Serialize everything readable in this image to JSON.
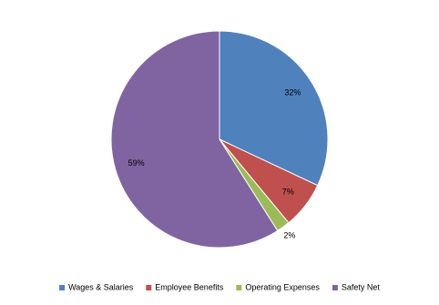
{
  "chart_data": {
    "type": "pie",
    "categories": [
      "Wages & Salaries",
      "Employee Benefits",
      "Operating Expenses",
      "Safety Net"
    ],
    "values": [
      32,
      7,
      2,
      59
    ],
    "value_labels": [
      "32%",
      "7%",
      "2%",
      "59%"
    ],
    "colors": [
      "#4f81bd",
      "#c0504d",
      "#9bbb59",
      "#8064a2"
    ],
    "legend": "bottom"
  }
}
